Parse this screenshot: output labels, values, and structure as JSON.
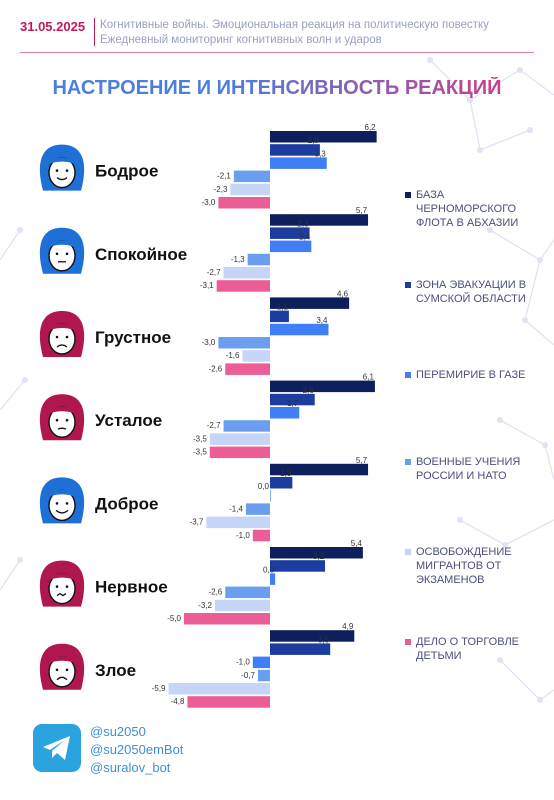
{
  "header": {
    "date": "31.05.2025",
    "line1": "Когнитивные войны. Эмоциональная реакция на политическую повестку",
    "line2": "Ежедневный мониторинг когнитивных волн и ударов"
  },
  "title": "НАСТРОЕНИЕ И ИНТЕНСИВНОСТЬ РЕАКЦИЙ",
  "colors": {
    "accent_pink": "#c2185b",
    "title_blue": "#4a7ee0",
    "title_pink": "#e0337a",
    "network": "#dfe3f2"
  },
  "chart_data": {
    "type": "bar",
    "orientation": "horizontal",
    "categories": [
      "Бодрое",
      "Спокойное",
      "Грустное",
      "Усталое",
      "Доброе",
      "Нервное",
      "Злое"
    ],
    "category_icons": [
      "girl-smile-icon",
      "girl-calm-icon",
      "girl-sad-icon",
      "man-tired-icon",
      "man-kind-icon",
      "girl-nervous-icon",
      "girl-angry-icon"
    ],
    "series": [
      {
        "name": "БАЗА ЧЕРНОМОРСКОГО ФЛОТА В АБХАЗИИ",
        "color": "#0d1f5c",
        "values": [
          6.2,
          5.7,
          4.6,
          6.1,
          5.7,
          5.4,
          4.9
        ],
        "labels": [
          "6,2",
          "5,7",
          "4,6",
          "6,1",
          "5,7",
          "5,4",
          "4,9"
        ]
      },
      {
        "name": "ЗОНА ЭВАКУАЦИИ В СУМСКОЙ ОБЛАСТИ",
        "color": "#1c3c9e",
        "values": [
          2.9,
          2.3,
          1.1,
          2.6,
          1.3,
          3.2,
          3.5
        ],
        "labels": [
          "2,9",
          "2,3",
          "1,1",
          "2,6",
          "1,3",
          "3,2",
          "3,5"
        ]
      },
      {
        "name": "ПЕРЕМИРИЕ В ГАЗЕ",
        "color": "#3f7ef5",
        "values": [
          3.3,
          2.4,
          3.4,
          1.7,
          0.0,
          0.3,
          -1.0
        ],
        "labels": [
          "3,3",
          "2,4",
          "3,4",
          "1,7",
          "0,0",
          "0,3",
          "-1,0"
        ]
      },
      {
        "name": "ВОЕННЫЕ УЧЕНИЯ РОССИИ И НАТО",
        "color": "#6c9ef0",
        "values": [
          -2.1,
          -1.3,
          -3.0,
          -2.7,
          -1.4,
          -2.6,
          -0.7
        ],
        "labels": [
          "-2,1",
          "-1,3",
          "-3,0",
          "-2,7",
          "-1,4",
          "-2,6",
          "-0,7"
        ]
      },
      {
        "name": "ОСВОБОЖДЕНИЕ МИГРАНТОВ ОТ ЭКЗАМЕНОВ",
        "color": "#c4d5f8",
        "values": [
          -2.3,
          -2.7,
          -1.6,
          -3.5,
          -3.7,
          -3.2,
          -5.9
        ],
        "labels": [
          "-2,3",
          "-2,7",
          "-1,6",
          "-3,5",
          "-3,7",
          "-3,2",
          "-5,9"
        ]
      },
      {
        "name": "ДЕЛО О ТОРГОВЛЕ ДЕТЬМИ",
        "color": "#ec5c96",
        "values": [
          -3.0,
          -3.1,
          -2.6,
          -3.5,
          -1.0,
          -5.0,
          -4.8
        ],
        "labels": [
          "-3,0",
          "-3,1",
          "-2,6",
          "-3,5",
          "-1,0",
          "-5,0",
          "-4,8"
        ]
      }
    ],
    "legend_position": "right",
    "grid": false
  },
  "footer": {
    "telegram_icon": "telegram-icon",
    "handles": [
      "@su2050",
      "@su2050emBot",
      "@suralov_bot"
    ]
  }
}
